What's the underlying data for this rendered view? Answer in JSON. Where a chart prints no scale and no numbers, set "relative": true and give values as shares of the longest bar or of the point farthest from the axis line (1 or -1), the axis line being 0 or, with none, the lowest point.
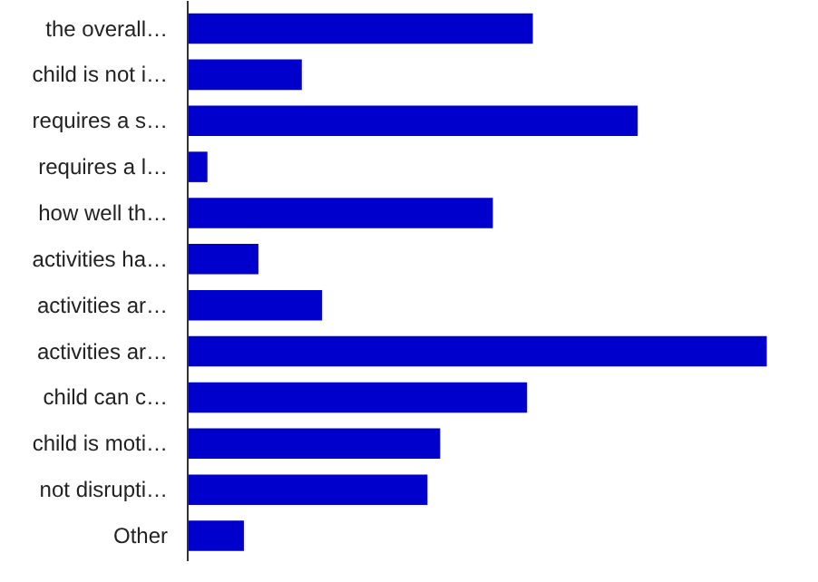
{
  "chart_data": {
    "type": "bar",
    "orientation": "horizontal",
    "relative": true,
    "color": "#0000cc",
    "categories": [
      "the overall…",
      "child is not i…",
      "requires a s…",
      "requires a l…",
      "how well th…",
      "activities ha…",
      "activities ar…",
      "activities ar…",
      "child can c…",
      "child is moti…",
      "not disrupti…",
      "Other"
    ],
    "values": [
      0.596,
      0.197,
      0.777,
      0.034,
      0.527,
      0.122,
      0.232,
      1,
      0.586,
      0.436,
      0.414,
      0.097
    ]
  }
}
